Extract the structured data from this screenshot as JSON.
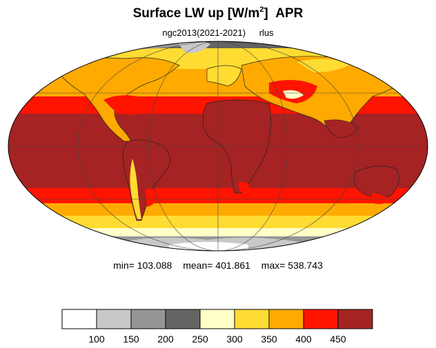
{
  "title": {
    "main": "Surface LW up [W/m",
    "superscript": "2",
    "after_superscript": "]",
    "month": "APR"
  },
  "subtitle": {
    "dataset": "ngc2013(2021-2021)",
    "variable": "rlus"
  },
  "stats": {
    "min_label": "min= 103.088",
    "mean_label": "mean= 401.861",
    "max_label": "max= 538.743"
  },
  "colorbar": {
    "colors": [
      "#ffffff",
      "#c8c8c8",
      "#969696",
      "#646464",
      "#ffffc8",
      "#ffdc32",
      "#ffaa00",
      "#ff1400",
      "#a52323"
    ],
    "ticks": [
      "100",
      "150",
      "200",
      "250",
      "300",
      "350",
      "400",
      "450"
    ]
  },
  "map": {
    "projection": "Mollweide"
  }
}
